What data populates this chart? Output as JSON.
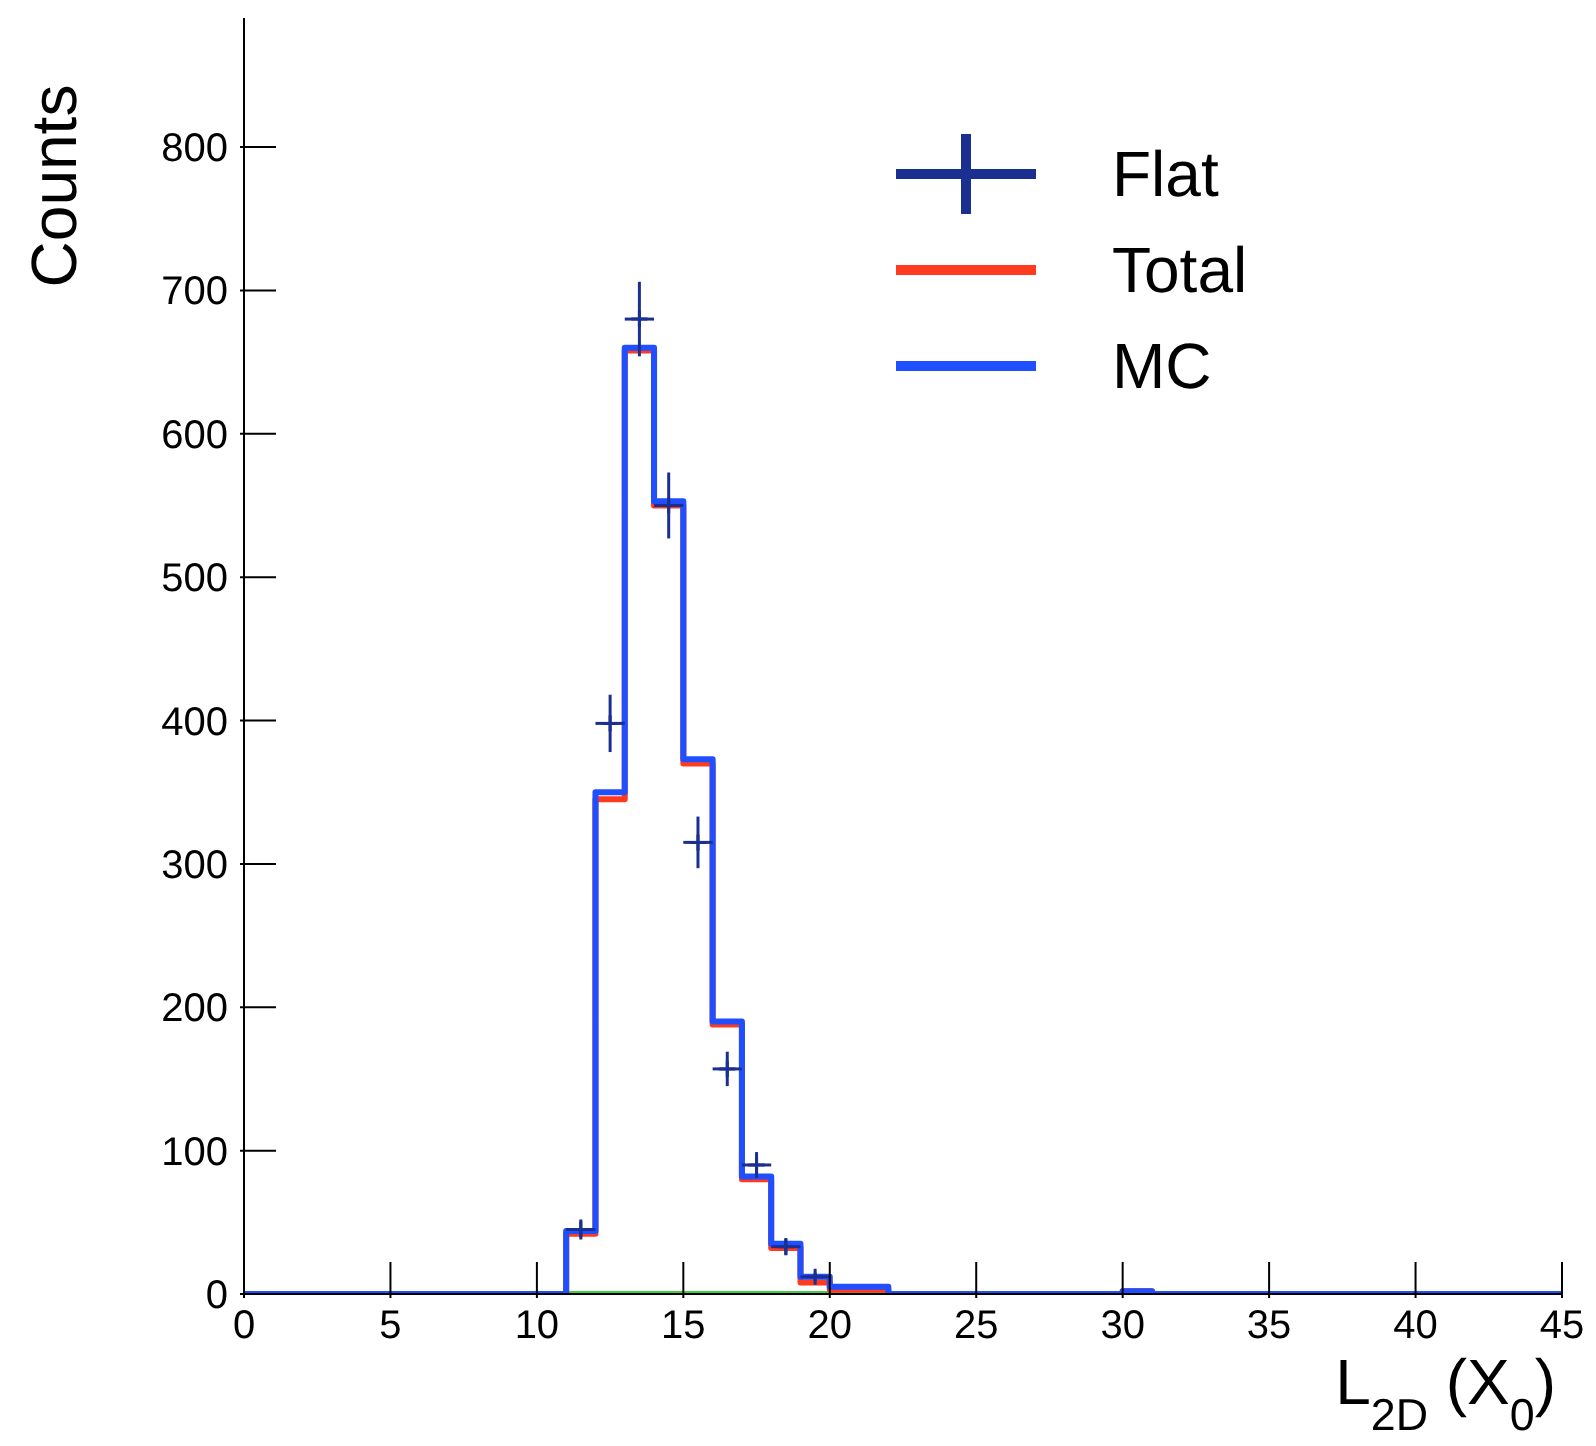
{
  "chart_data": {
    "type": "histogram",
    "xlabel": "L$_{2D}$ (X$_{0}$)",
    "ylabel": "Counts",
    "bins": [
      0,
      1,
      2,
      3,
      4,
      5,
      6,
      7,
      8,
      9,
      10,
      11,
      12,
      13,
      14,
      15,
      16,
      17,
      18,
      19,
      20,
      21,
      22,
      23,
      24,
      25,
      26,
      27,
      28,
      29,
      30,
      31,
      32,
      33,
      34,
      35,
      36,
      37,
      38,
      39,
      40,
      41,
      42,
      43,
      44,
      45
    ],
    "series": [
      {
        "color": "#44cc44",
        "values": [
          0,
          0,
          0,
          0,
          0,
          0,
          0,
          0,
          0,
          0,
          0,
          0,
          0,
          0,
          0,
          0,
          0,
          0,
          0,
          0,
          0,
          0,
          0,
          0,
          0,
          0,
          0,
          0,
          0,
          0,
          0,
          0,
          0,
          0,
          0,
          0,
          0,
          0,
          0,
          0,
          0,
          0,
          0,
          0,
          0
        ]
      },
      {
        "name": "Total",
        "color": "#ff3b1f",
        "values": [
          0,
          0,
          0,
          0,
          0,
          0,
          0,
          0,
          0,
          0,
          0,
          42,
          345,
          658,
          550,
          370,
          188,
          80,
          32,
          8,
          3,
          3,
          0,
          0,
          0,
          0,
          0,
          0,
          0,
          0,
          2,
          0,
          0,
          0,
          0,
          0,
          0,
          0,
          0,
          0,
          0,
          0,
          0,
          0,
          0
        ]
      },
      {
        "name": "MC",
        "color": "#1f4fff",
        "values": [
          0,
          0,
          0,
          0,
          0,
          0,
          0,
          0,
          0,
          0,
          0,
          44,
          350,
          660,
          553,
          373,
          190,
          82,
          35,
          12,
          5,
          5,
          0,
          0,
          0,
          0,
          0,
          0,
          0,
          0,
          2,
          0,
          0,
          0,
          0,
          0,
          0,
          0,
          0,
          0,
          0,
          0,
          0,
          0,
          0
        ]
      },
      {
        "name": "Flat",
        "type": "scatter",
        "color": "#1a2f8f",
        "marker": "cross",
        "x": [
          11.5,
          12.5,
          13.5,
          14.5,
          15.5,
          16.5,
          17.5,
          18.5,
          19.5
        ],
        "values": [
          45,
          398,
          680,
          550,
          315,
          157,
          90,
          33,
          12
        ],
        "errors": [
          7,
          20,
          26,
          23,
          18,
          12,
          9,
          6,
          3
        ],
        "xerrors": [
          0.5,
          0.5,
          0.5,
          0.5,
          0.5,
          0.5,
          0.5,
          0.5,
          0.5
        ]
      }
    ],
    "xlim": [
      0,
      45
    ],
    "xticks": [
      0,
      5,
      10,
      15,
      20,
      25,
      30,
      35,
      40,
      45
    ],
    "ylim": [
      0,
      890
    ],
    "yticks": [
      0,
      100,
      200,
      300,
      400,
      500,
      600,
      700,
      800
    ],
    "legend": "top right",
    "grid": false
  }
}
